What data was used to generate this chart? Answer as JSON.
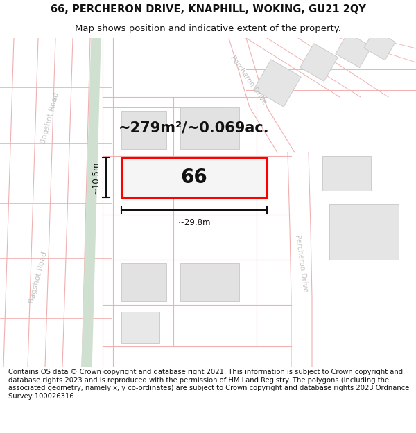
{
  "title_line1": "66, PERCHERON DRIVE, KNAPHILL, WOKING, GU21 2QY",
  "title_line2": "Map shows position and indicative extent of the property.",
  "footer": "Contains OS data © Crown copyright and database right 2021. This information is subject to Crown copyright and database rights 2023 and is reproduced with the permission of HM Land Registry. The polygons (including the associated geometry, namely x, y co-ordinates) are subject to Crown copyright and database rights 2023 Ordnance Survey 100026316.",
  "area_label": "~279m²/~0.069ac.",
  "number_label": "66",
  "width_label": "~29.8m",
  "height_label": "~10.5m",
  "bg_color": "#ffffff",
  "map_bg": "#ffffff",
  "road_line_color": "#f0b0b0",
  "building_fill": "#e0e0e0",
  "building_edge": "#cccccc",
  "green_strip_color": "#d0e0d0",
  "plot_fill": "#f0f0f0",
  "plot_edge": "#ff0000",
  "plot_linewidth": 2.2,
  "dimension_color": "#111111",
  "text_color": "#111111",
  "road_label_color": "#c0c0c0",
  "title_fontsize": 10.5,
  "subtitle_fontsize": 9.5,
  "footer_fontsize": 7.2,
  "area_fontsize": 15,
  "num_fontsize": 20
}
